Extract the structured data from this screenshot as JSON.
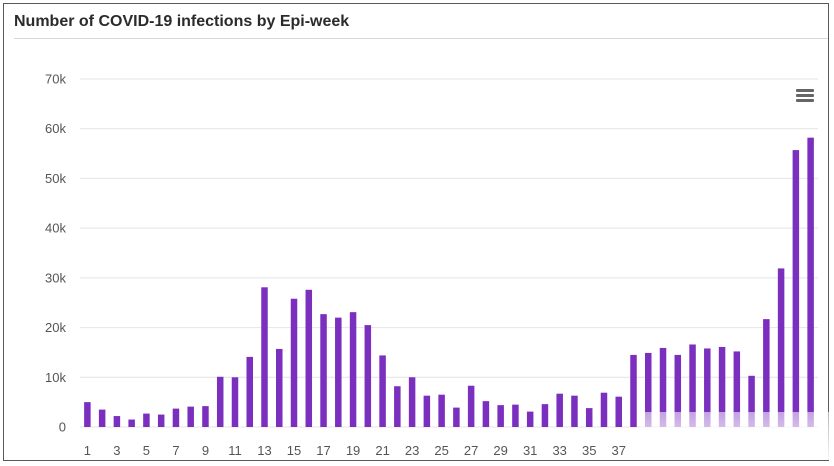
{
  "title": "Number of COVID-19 infections by Epi-week",
  "menu": {
    "icon": "hamburger-menu-icon"
  },
  "colors": {
    "bar": "#7b2fbe",
    "grid": "#e4e4e4",
    "frame": "#5a5a5a"
  },
  "chart_data": {
    "type": "bar",
    "title": "Number of COVID-19 infections by Epi-week",
    "xlabel": "",
    "ylabel": "",
    "ylim": [
      0,
      70000
    ],
    "grid": true,
    "y_ticks": [
      {
        "value": 0,
        "label": "0"
      },
      {
        "value": 10000,
        "label": "10k"
      },
      {
        "value": 20000,
        "label": "20k"
      },
      {
        "value": 30000,
        "label": "30k"
      },
      {
        "value": 40000,
        "label": "40k"
      },
      {
        "value": 50000,
        "label": "50k"
      },
      {
        "value": 60000,
        "label": "60k"
      },
      {
        "value": 70000,
        "label": "70k"
      }
    ],
    "x_tick_labels": [
      "1",
      "3",
      "5",
      "7",
      "9",
      "11",
      "13",
      "15",
      "17",
      "19",
      "21",
      "23",
      "25",
      "27",
      "29",
      "31",
      "33",
      "35",
      "37"
    ],
    "categories": [
      "1",
      "2",
      "3",
      "4",
      "5",
      "6",
      "7",
      "8",
      "9",
      "10",
      "11",
      "12",
      "13",
      "14",
      "15",
      "16",
      "17",
      "18",
      "19",
      "20",
      "21",
      "22",
      "23",
      "24",
      "25",
      "26",
      "27",
      "28",
      "29",
      "30",
      "31",
      "32",
      "33",
      "34",
      "35",
      "36",
      "37",
      "38",
      "39",
      "40",
      "41",
      "42",
      "43",
      "44",
      "45",
      "46",
      "47",
      "48",
      "49",
      "50"
    ],
    "values": [
      5000,
      3500,
      2200,
      1500,
      2700,
      2500,
      3700,
      4100,
      4200,
      10100,
      10000,
      14100,
      28100,
      15700,
      25800,
      27600,
      22700,
      22000,
      23100,
      20500,
      14400,
      8200,
      10000,
      6300,
      6500,
      3900,
      8300,
      5200,
      4400,
      4500,
      3100,
      4600,
      6700,
      6300,
      3800,
      6900,
      6100,
      14500,
      14900,
      15900,
      14500,
      16600,
      15800,
      16100,
      15200,
      10300,
      21700,
      31900,
      55700,
      58200
    ]
  }
}
